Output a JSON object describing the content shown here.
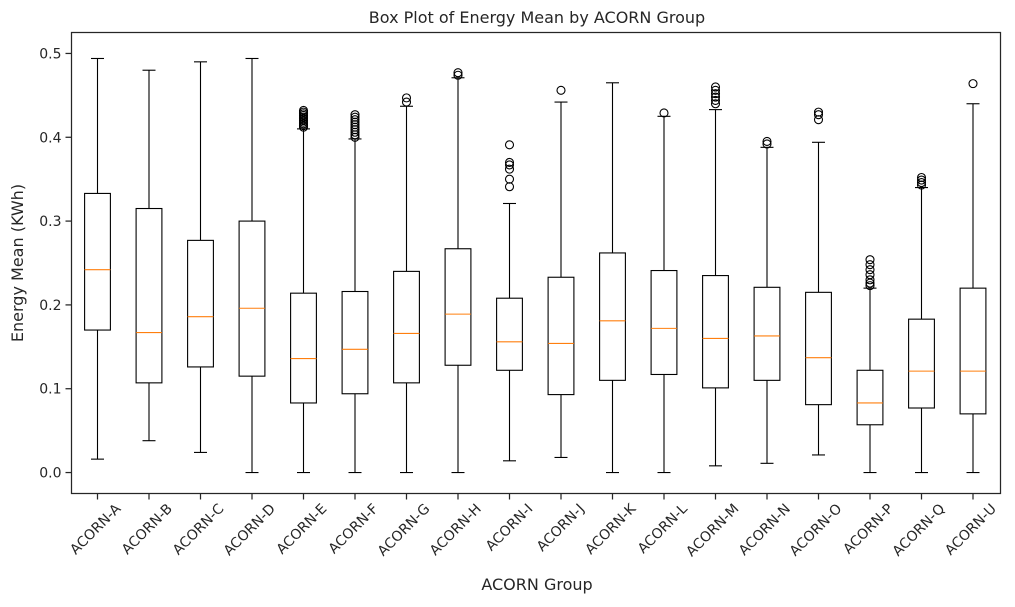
{
  "chart_data": {
    "type": "boxplot",
    "title": "Box Plot of Energy Mean by ACORN Group",
    "xlabel": "ACORN Group",
    "ylabel": "Energy Mean (KWh)",
    "ylim": [
      -0.025,
      0.525
    ],
    "yticks": [
      0.0,
      0.1,
      0.2,
      0.3,
      0.4,
      0.5
    ],
    "ytick_labels": [
      "0.0",
      "0.1",
      "0.2",
      "0.3",
      "0.4",
      "0.5"
    ],
    "grid": false,
    "colors": {
      "box": "#000000",
      "median": "#ff7f0e",
      "flier": "#000000"
    },
    "categories": [
      "ACORN-A",
      "ACORN-B",
      "ACORN-C",
      "ACORN-D",
      "ACORN-E",
      "ACORN-F",
      "ACORN-G",
      "ACORN-H",
      "ACORN-I",
      "ACORN-J",
      "ACORN-K",
      "ACORN-L",
      "ACORN-M",
      "ACORN-N",
      "ACORN-O",
      "ACORN-P",
      "ACORN-Q",
      "ACORN-U"
    ],
    "boxes": [
      {
        "whislo": 0.016,
        "q1": 0.17,
        "med": 0.242,
        "q3": 0.333,
        "whishi": 0.494,
        "fliers": []
      },
      {
        "whislo": 0.038,
        "q1": 0.107,
        "med": 0.167,
        "q3": 0.315,
        "whishi": 0.48,
        "fliers": []
      },
      {
        "whislo": 0.024,
        "q1": 0.126,
        "med": 0.186,
        "q3": 0.277,
        "whishi": 0.49,
        "fliers": []
      },
      {
        "whislo": 0.0,
        "q1": 0.115,
        "med": 0.196,
        "q3": 0.3,
        "whishi": 0.494,
        "fliers": []
      },
      {
        "whislo": 0.0,
        "q1": 0.083,
        "med": 0.136,
        "q3": 0.214,
        "whishi": 0.41,
        "fliers": [
          0.412,
          0.414,
          0.416,
          0.418,
          0.42,
          0.422,
          0.424,
          0.426,
          0.428,
          0.43,
          0.432
        ]
      },
      {
        "whislo": 0.0,
        "q1": 0.094,
        "med": 0.147,
        "q3": 0.216,
        "whishi": 0.398,
        "fliers": [
          0.4,
          0.403,
          0.406,
          0.409,
          0.412,
          0.415,
          0.418,
          0.421,
          0.424,
          0.427
        ]
      },
      {
        "whislo": 0.0,
        "q1": 0.107,
        "med": 0.166,
        "q3": 0.24,
        "whishi": 0.437,
        "fliers": [
          0.442,
          0.447
        ]
      },
      {
        "whislo": 0.0,
        "q1": 0.128,
        "med": 0.189,
        "q3": 0.267,
        "whishi": 0.471,
        "fliers": [
          0.474,
          0.477
        ]
      },
      {
        "whislo": 0.014,
        "q1": 0.122,
        "med": 0.156,
        "q3": 0.208,
        "whishi": 0.321,
        "fliers": [
          0.341,
          0.35,
          0.362,
          0.367,
          0.37,
          0.391
        ]
      },
      {
        "whislo": 0.018,
        "q1": 0.093,
        "med": 0.154,
        "q3": 0.233,
        "whishi": 0.442,
        "fliers": [
          0.456
        ]
      },
      {
        "whislo": 0.0,
        "q1": 0.11,
        "med": 0.181,
        "q3": 0.262,
        "whishi": 0.465,
        "fliers": []
      },
      {
        "whislo": 0.0,
        "q1": 0.117,
        "med": 0.172,
        "q3": 0.241,
        "whishi": 0.425,
        "fliers": [
          0.429
        ]
      },
      {
        "whislo": 0.008,
        "q1": 0.101,
        "med": 0.16,
        "q3": 0.235,
        "whishi": 0.433,
        "fliers": [
          0.44,
          0.444,
          0.448,
          0.452,
          0.456,
          0.46
        ]
      },
      {
        "whislo": 0.011,
        "q1": 0.11,
        "med": 0.163,
        "q3": 0.221,
        "whishi": 0.388,
        "fliers": [
          0.392,
          0.395
        ]
      },
      {
        "whislo": 0.021,
        "q1": 0.081,
        "med": 0.137,
        "q3": 0.215,
        "whishi": 0.394,
        "fliers": [
          0.421,
          0.427,
          0.43
        ]
      },
      {
        "whislo": 0.0,
        "q1": 0.057,
        "med": 0.083,
        "q3": 0.122,
        "whishi": 0.22,
        "fliers": [
          0.223,
          0.226,
          0.23,
          0.236,
          0.242,
          0.248,
          0.254
        ]
      },
      {
        "whislo": 0.0,
        "q1": 0.077,
        "med": 0.121,
        "q3": 0.183,
        "whishi": 0.34,
        "fliers": [
          0.343,
          0.346,
          0.349,
          0.352
        ]
      },
      {
        "whislo": 0.0,
        "q1": 0.07,
        "med": 0.121,
        "q3": 0.22,
        "whishi": 0.44,
        "fliers": [
          0.464
        ]
      }
    ]
  }
}
